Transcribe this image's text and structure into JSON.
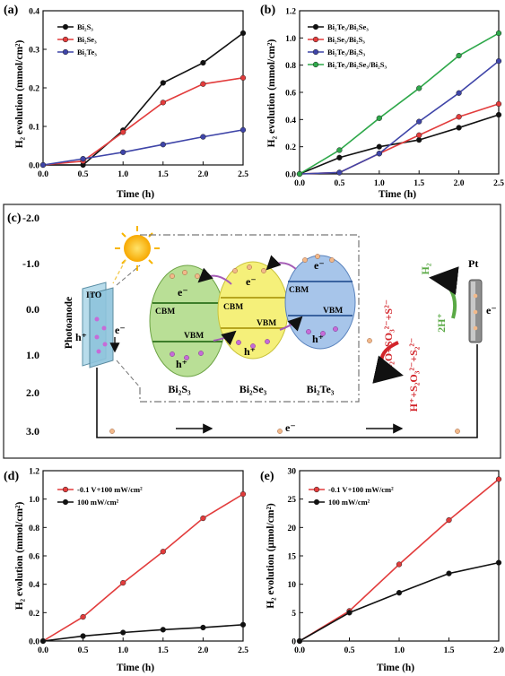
{
  "panel_c": {
    "label": "(c)",
    "potential_ticks": [
      "-2.0",
      "-1.0",
      "0.0",
      "1.0",
      "2.0",
      "3.0"
    ],
    "photoanode": "Photoanode",
    "ito": "ITO",
    "h_plus": "h⁺",
    "e_minus": "e⁻",
    "cbm": "CBM",
    "vbm": "VBM",
    "materials": [
      "Bi₂S₃",
      "Bi₂Se₃",
      "Bi₂Te₃"
    ],
    "reaction_oxidation": "H₂O+SO₃²⁻+S²⁻",
    "reaction_product": "H⁺+S₂O₃²⁻+S₂²⁻",
    "reaction_h2": "H₂",
    "reaction_2h": "2H⁺",
    "pt": "Pt",
    "circuit_e": "e⁻",
    "colors": {
      "sun": "#f7b500",
      "bi2s3": "#b9df96",
      "bi2se3": "#f5f07a",
      "bi2te3": "#a7c5ea",
      "ito": "#9fcfe2",
      "oxidation_arrow": "#d2242a",
      "h2_arrow": "#5aa945"
    }
  },
  "chart_data": [
    {
      "panel": "(a)",
      "type": "line",
      "xlabel": "Time (h)",
      "ylabel": "H₂ evolution (mmol/cm²)",
      "xlim": [
        0.0,
        2.5
      ],
      "ylim": [
        0.0,
        0.4
      ],
      "xticks": [
        "0.0",
        "0.5",
        "1.0",
        "1.5",
        "2.0",
        "2.5"
      ],
      "yticks": [
        "0.0",
        "0.1",
        "0.2",
        "0.3",
        "0.4"
      ],
      "x": [
        0.0,
        0.5,
        1.0,
        1.5,
        2.0,
        2.5
      ],
      "legend_position": "top-left",
      "series": [
        {
          "name": "Bi₂S₃",
          "color": "#111111",
          "values": [
            0.0,
            0.0,
            0.09,
            0.213,
            0.265,
            0.342
          ]
        },
        {
          "name": "Bi₂Se₃",
          "color": "#e23c3c",
          "values": [
            0.0,
            0.01,
            0.085,
            0.162,
            0.21,
            0.226
          ]
        },
        {
          "name": "Bi₂Te₃",
          "color": "#3f45a8",
          "values": [
            0.0,
            0.016,
            0.033,
            0.053,
            0.073,
            0.091
          ]
        }
      ]
    },
    {
      "panel": "(b)",
      "type": "line",
      "xlabel": "Time (h)",
      "ylabel": "H₂ evolution (mmol/cm²)",
      "xlim": [
        0.0,
        2.5
      ],
      "ylim": [
        0.0,
        1.2
      ],
      "xticks": [
        "0.0",
        "0.5",
        "1.0",
        "1.5",
        "2.0",
        "2.5"
      ],
      "yticks": [
        "0.0",
        "0.2",
        "0.4",
        "0.6",
        "0.8",
        "1.0",
        "1.2"
      ],
      "x": [
        0.0,
        0.5,
        1.0,
        1.5,
        2.0,
        2.5
      ],
      "legend_position": "top-left",
      "series": [
        {
          "name": "Bi₂Te₃/Bi₂Se₃",
          "color": "#111111",
          "values": [
            0.0,
            0.12,
            0.2,
            0.25,
            0.34,
            0.435
          ]
        },
        {
          "name": "Bi₂Se₃/Bi₂S₃",
          "color": "#e23c3c",
          "values": [
            0.0,
            0.01,
            0.15,
            0.285,
            0.42,
            0.515
          ]
        },
        {
          "name": "Bi₂Te₃/Bi₂S₃",
          "color": "#3f45a8",
          "values": [
            0.0,
            0.01,
            0.15,
            0.385,
            0.595,
            0.83
          ]
        },
        {
          "name": "Bi₂Te₃/Bi₂Se₃/Bi₂S₃",
          "color": "#2ea84a",
          "values": [
            0.0,
            0.175,
            0.41,
            0.63,
            0.87,
            1.035
          ]
        }
      ]
    },
    {
      "panel": "(d)",
      "type": "line",
      "xlabel": "Time (h)",
      "ylabel": "H₂ evolution (mmol/cm²)",
      "xlim": [
        0.0,
        2.5
      ],
      "ylim": [
        0.0,
        1.2
      ],
      "xticks": [
        "0.0",
        "0.5",
        "1.0",
        "1.5",
        "2.0",
        "2.5"
      ],
      "yticks": [
        "0.0",
        "0.2",
        "0.4",
        "0.6",
        "0.8",
        "1.0",
        "1.2"
      ],
      "x": [
        0.0,
        0.5,
        1.0,
        1.5,
        2.0,
        2.5
      ],
      "legend_position": "top-left",
      "series": [
        {
          "name": "-0.1 V+100 mW/cm²",
          "color": "#e23c3c",
          "values": [
            0.0,
            0.17,
            0.41,
            0.63,
            0.865,
            1.035
          ]
        },
        {
          "name": "100 mW/cm²",
          "color": "#111111",
          "values": [
            0.0,
            0.035,
            0.06,
            0.08,
            0.095,
            0.115
          ]
        }
      ]
    },
    {
      "panel": "(e)",
      "type": "line",
      "xlabel": "Time (h)",
      "ylabel": "H₂ evolution (μmol/cm²)",
      "xlim": [
        0.0,
        2.0
      ],
      "ylim": [
        0,
        30
      ],
      "xticks": [
        "0.0",
        "0.5",
        "1.0",
        "1.5",
        "2.0"
      ],
      "yticks": [
        "0",
        "5",
        "10",
        "15",
        "20",
        "25",
        "30"
      ],
      "x": [
        0.0,
        0.5,
        1.0,
        1.5,
        2.0
      ],
      "legend_position": "top-left",
      "series": [
        {
          "name": "-0.1 V+100 mW/cm²",
          "color": "#e23c3c",
          "values": [
            0.0,
            5.3,
            13.5,
            21.3,
            28.5
          ]
        },
        {
          "name": "100 mW/cm²",
          "color": "#111111",
          "values": [
            0.0,
            5.0,
            8.5,
            11.9,
            13.8
          ]
        }
      ]
    }
  ]
}
